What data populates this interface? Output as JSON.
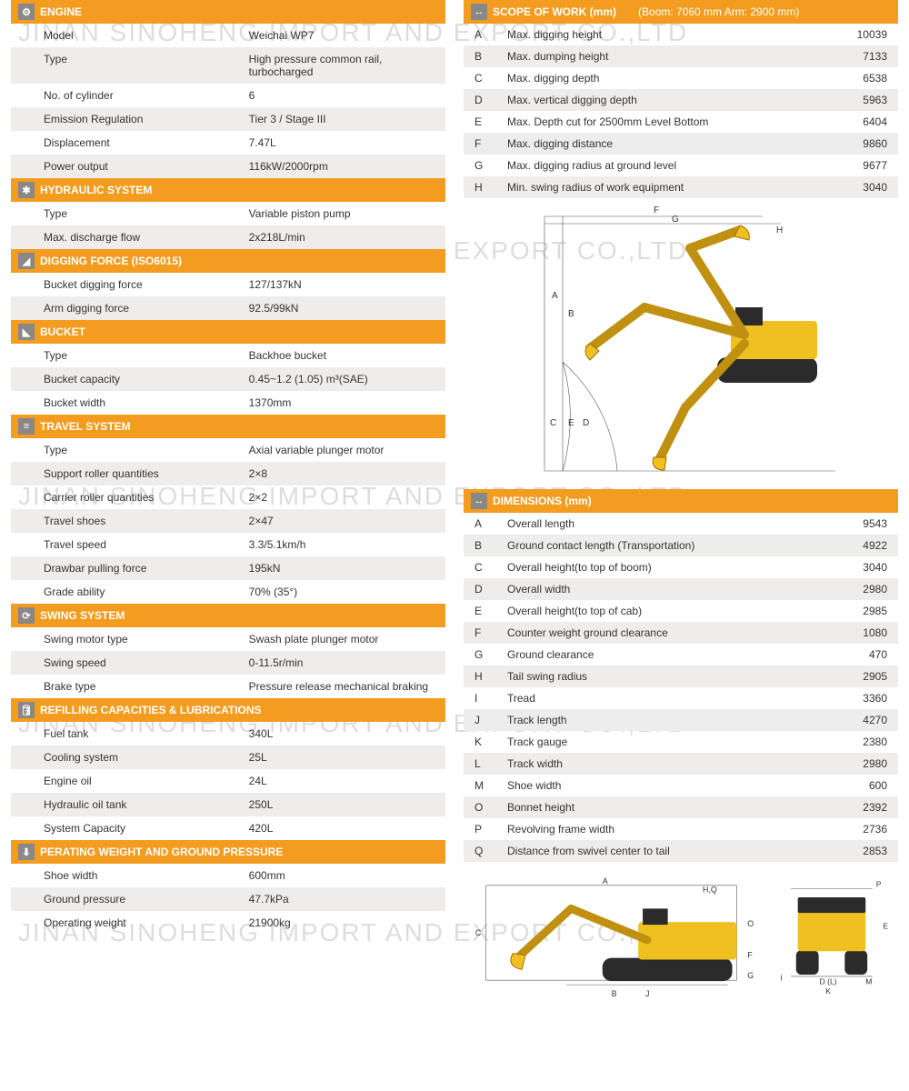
{
  "watermark": "JINAN SINOHENG IMPORT AND EXPORT CO.,LTD",
  "colors": {
    "header_bg": "#f39c1f",
    "header_text": "#ffffff",
    "row_alt": "#eeedeb",
    "icon_bg": "#888888",
    "excavator_body": "#f0c020",
    "excavator_dark": "#2b2b2b",
    "dim_line": "#555555"
  },
  "left_sections": [
    {
      "title": "ENGINE",
      "icon": "⚙",
      "rows": [
        {
          "label": "Model",
          "value": "Weichai WP7"
        },
        {
          "label": "Type",
          "value": "High pressure common rail, turbocharged"
        },
        {
          "label": "No. of cylinder",
          "value": "6"
        },
        {
          "label": "Emission Regulation",
          "value": "Tier 3 / Stage III"
        },
        {
          "label": "Displacement",
          "value": "7.47L"
        },
        {
          "label": "Power output",
          "value": "116kW/2000rpm"
        }
      ]
    },
    {
      "title": "HYDRAULIC SYSTEM",
      "icon": "✱",
      "rows": [
        {
          "label": "Type",
          "value": "Variable piston pump"
        },
        {
          "label": "Max. discharge flow",
          "value": "2x218L/min"
        }
      ]
    },
    {
      "title": "DIGGING FORCE (ISO6015)",
      "icon": "◢",
      "rows": [
        {
          "label": "Bucket digging force",
          "value": "127/137kN"
        },
        {
          "label": "Arm digging force",
          "value": "92.5/99kN"
        }
      ]
    },
    {
      "title": "BUCKET",
      "icon": "◣",
      "rows": [
        {
          "label": "Type",
          "value": "Backhoe bucket"
        },
        {
          "label": "Bucket capacity",
          "value": "0.45~1.2 (1.05) m³(SAE)"
        },
        {
          "label": "Bucket width",
          "value": "1370mm"
        }
      ]
    },
    {
      "title": "TRAVEL SYSTEM",
      "icon": "≡",
      "rows": [
        {
          "label": "Type",
          "value": "Axial variable plunger motor"
        },
        {
          "label": "Support roller quantities",
          "value": "2×8"
        },
        {
          "label": "Carrier roller quantities",
          "value": "2×2"
        },
        {
          "label": "Travel shoes",
          "value": "2×47"
        },
        {
          "label": "Travel speed",
          "value": "3.3/5.1km/h"
        },
        {
          "label": "Drawbar pulling force",
          "value": "195kN"
        },
        {
          "label": "Grade ability",
          "value": "70% (35°)"
        }
      ]
    },
    {
      "title": "SWING SYSTEM",
      "icon": "⟳",
      "rows": [
        {
          "label": "Swing motor type",
          "value": "Swash plate plunger motor"
        },
        {
          "label": "Swing speed",
          "value": "0-11.5r/min"
        },
        {
          "label": "Brake type",
          "value": "Pressure release mechanical braking"
        }
      ]
    },
    {
      "title": "REFILLING CAPACITIES & LUBRICATIONS",
      "icon": "🛢",
      "rows": [
        {
          "label": "Fuel tank",
          "value": "340L"
        },
        {
          "label": "Cooling system",
          "value": "25L"
        },
        {
          "label": "Engine oil",
          "value": "24L"
        },
        {
          "label": "Hydraulic oil tank",
          "value": "250L"
        },
        {
          "label": "System Capacity",
          "value": "420L"
        }
      ]
    },
    {
      "title": "PERATING WEIGHT AND GROUND PRESSURE",
      "icon": "⬇",
      "rows": [
        {
          "label": "Shoe width",
          "value": "600mm"
        },
        {
          "label": "Ground pressure",
          "value": "47.7kPa"
        },
        {
          "label": "Operating weight",
          "value": "21900kg"
        }
      ]
    }
  ],
  "scope": {
    "title": "SCOPE OF WORK (mm)",
    "sub": "(Boom: 7060 mm    Arm: 2900 mm)",
    "icon": "↔",
    "rows": [
      {
        "letter": "A",
        "label": "Max. digging height",
        "value": "10039"
      },
      {
        "letter": "B",
        "label": "Max. dumping height",
        "value": "7133"
      },
      {
        "letter": "C",
        "label": "Max. digging depth",
        "value": "6538"
      },
      {
        "letter": "D",
        "label": "Max. vertical digging depth",
        "value": "5963"
      },
      {
        "letter": "E",
        "label": "Max. Depth cut for 2500mm Level Bottom",
        "value": "6404"
      },
      {
        "letter": "F",
        "label": "Max. digging distance",
        "value": "9860"
      },
      {
        "letter": "G",
        "label": "Max. digging radius at ground level",
        "value": "9677"
      },
      {
        "letter": "H",
        "label": "Min. swing radius of work equipment",
        "value": "3040"
      }
    ]
  },
  "dimensions": {
    "title": "DIMENSIONS (mm)",
    "icon": "↔",
    "rows": [
      {
        "letter": "A",
        "label": "Overall length",
        "value": "9543"
      },
      {
        "letter": "B",
        "label": "Ground contact length (Transportation)",
        "value": "4922"
      },
      {
        "letter": "C",
        "label": "Overall height(to top of boom)",
        "value": "3040"
      },
      {
        "letter": "D",
        "label": "Overall width",
        "value": "2980"
      },
      {
        "letter": "E",
        "label": "Overall height(to top of cab)",
        "value": "2985"
      },
      {
        "letter": "F",
        "label": "Counter weight ground clearance",
        "value": "1080"
      },
      {
        "letter": "G",
        "label": "Ground clearance",
        "value": "470"
      },
      {
        "letter": "H",
        "label": "Tail swing radius",
        "value": "2905"
      },
      {
        "letter": "I",
        "label": "Tread",
        "value": "3360"
      },
      {
        "letter": "J",
        "label": "Track length",
        "value": "4270"
      },
      {
        "letter": "K",
        "label": "Track gauge",
        "value": "2380"
      },
      {
        "letter": "L",
        "label": "Track width",
        "value": "2980"
      },
      {
        "letter": "M",
        "label": "Shoe width",
        "value": "600"
      },
      {
        "letter": "O",
        "label": "Bonnet height",
        "value": "2392"
      },
      {
        "letter": "P",
        "label": "Revolving frame width",
        "value": "2736"
      },
      {
        "letter": "Q",
        "label": "Distance from swivel center to tail",
        "value": "2853"
      }
    ]
  },
  "diagram_labels": {
    "top": [
      "F",
      "G",
      "H",
      "A",
      "B",
      "C",
      "D",
      "E"
    ],
    "side": [
      "A",
      "H,Q",
      "C",
      "O",
      "F",
      "G",
      "J",
      "B"
    ],
    "rear": [
      "P",
      "E",
      "K",
      "D(L)",
      "M",
      "I"
    ]
  }
}
